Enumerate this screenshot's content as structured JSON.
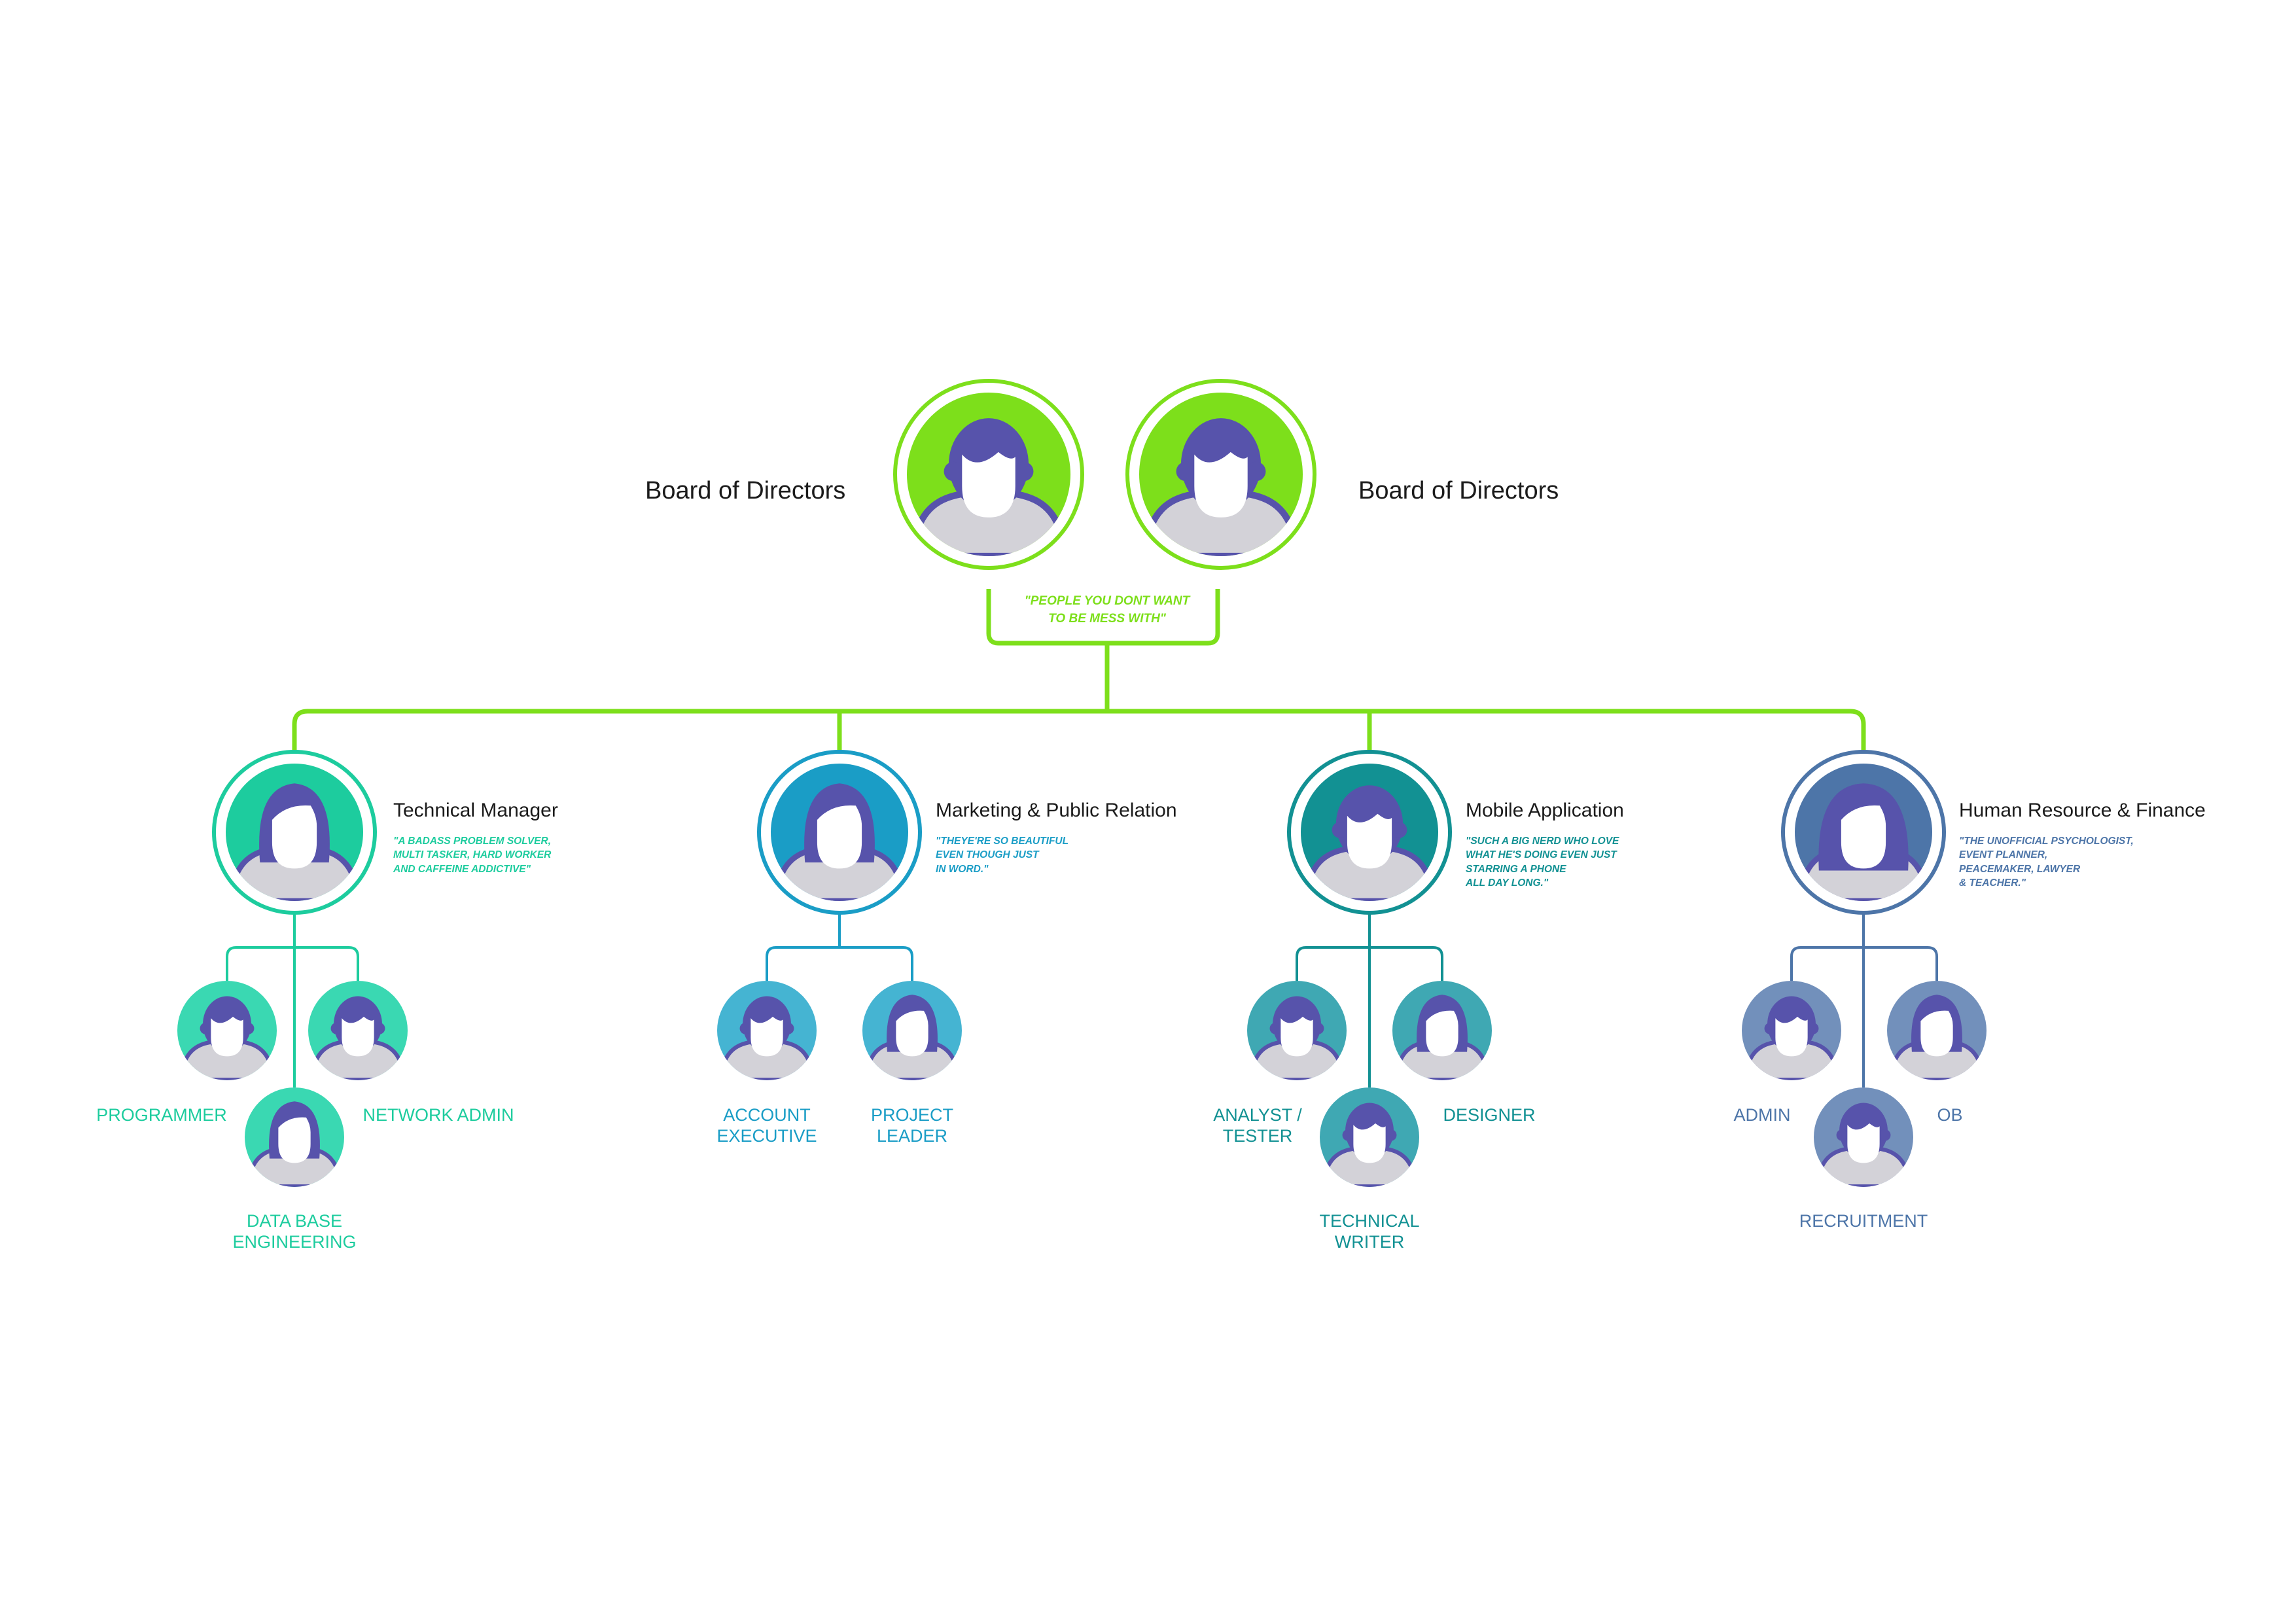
{
  "colors": {
    "board": "#7ddf1b",
    "connector": "#7ddf1b",
    "person_hair": "#5753ab",
    "person_body": "#d3d2d8",
    "person_outline": "#5753ab",
    "face": "#ffffff",
    "text_dark": "#1b1b1b"
  },
  "board": {
    "left_label": "Board of Directors",
    "right_label": "Board of Directors",
    "tagline": "\"PEOPLE YOU DONT WANT TO BE MESS WITH\"",
    "tagline_lines": [
      "\"PEOPLE YOU DONT WANT",
      "TO BE MESS WITH\""
    ],
    "icon": "male-person-icon"
  },
  "departments": [
    {
      "key": "technical",
      "title": "Technical Manager",
      "description": [
        "\"A BADASS PROBLEM SOLVER,",
        "MULTI TASKER, HARD WORKER",
        "AND CAFFEINE ADDICTIVE\""
      ],
      "color": "#1dcc9e",
      "sub_color": "#3ad8b2",
      "icon": "female-person-icon",
      "roles": [
        {
          "lines": [
            "PROGRAMMER"
          ],
          "icon": "male-person-icon"
        },
        {
          "lines": [
            "NETWORK ADMIN"
          ],
          "icon": "male-person-icon"
        },
        {
          "lines": [
            "DATA BASE",
            "ENGINEERING"
          ],
          "icon": "female-person-icon"
        }
      ]
    },
    {
      "key": "marketing",
      "title": "Marketing & Public Relation",
      "description": [
        "\"THEYE'RE SO BEAUTIFUL",
        "EVEN THOUGH JUST",
        "IN WORD.\""
      ],
      "color": "#1a9dc6",
      "sub_color": "#45b4d2",
      "icon": "female-person-icon",
      "roles": [
        {
          "lines": [
            "ACCOUNT",
            "EXECUTIVE"
          ],
          "icon": "male-person-icon"
        },
        {
          "lines": [
            "PROJECT",
            "LEADER"
          ],
          "icon": "female-person-icon"
        }
      ]
    },
    {
      "key": "mobile",
      "title": "Mobile Application",
      "description": [
        "\"SUCH A BIG NERD WHO LOVE",
        "WHAT HE'S DOING EVEN JUST",
        "STARRING A PHONE",
        "ALL DAY LONG.\""
      ],
      "color": "#129193",
      "sub_color": "#3fa8b3",
      "icon": "male-person-icon",
      "roles": [
        {
          "lines": [
            "ANALYST /",
            "TESTER"
          ],
          "icon": "male-person-icon"
        },
        {
          "lines": [
            "DESIGNER"
          ],
          "icon": "female-person-icon"
        },
        {
          "lines": [
            "TECHNICAL",
            "WRITER"
          ],
          "icon": "male-person-icon"
        }
      ]
    },
    {
      "key": "hr",
      "title": "Human Resource & Finance",
      "description": [
        "\"THE UNOFFICIAL PSYCHOLOGIST,",
        "EVENT PLANNER,",
        "PEACEMAKER, LAWYER",
        "& TEACHER.\""
      ],
      "color": "#4d75a8",
      "sub_color": "#7290bb",
      "icon": "long-hair-female-person-icon",
      "roles": [
        {
          "lines": [
            "ADMIN"
          ],
          "icon": "male-person-icon"
        },
        {
          "lines": [
            "OB"
          ],
          "icon": "female-person-icon"
        },
        {
          "lines": [
            "RECRUITMENT"
          ],
          "icon": "male-person-icon"
        }
      ]
    }
  ]
}
